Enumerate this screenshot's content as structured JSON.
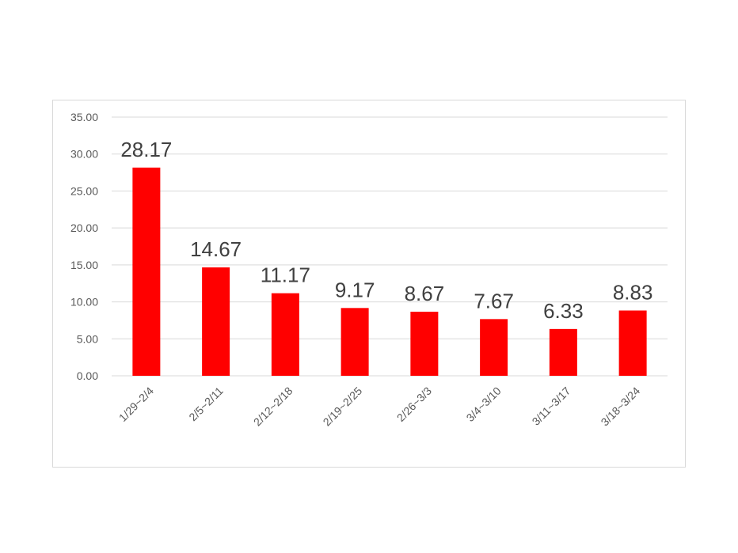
{
  "chart_data": {
    "type": "bar",
    "title": "",
    "xlabel": "",
    "ylabel": "",
    "categories": [
      "1/29~2/4",
      "2/5~2/11",
      "2/12~2/18",
      "2/19~2/25",
      "2/26~3/3",
      "3/4~3/10",
      "3/11~3/17",
      "3/18~3/24"
    ],
    "values": [
      28.17,
      14.67,
      11.17,
      9.17,
      8.67,
      7.67,
      6.33,
      8.83
    ],
    "data_labels": [
      "28.17",
      "14.67",
      "11.17",
      "9.17",
      "8.67",
      "7.67",
      "6.33",
      "8.83"
    ],
    "ylim": [
      0,
      35
    ],
    "yticks": [
      "0.00",
      "5.00",
      "10.00",
      "15.00",
      "20.00",
      "25.00",
      "30.00",
      "35.00"
    ],
    "grid": true,
    "legend": "none",
    "bar_color": "#ff0000"
  }
}
